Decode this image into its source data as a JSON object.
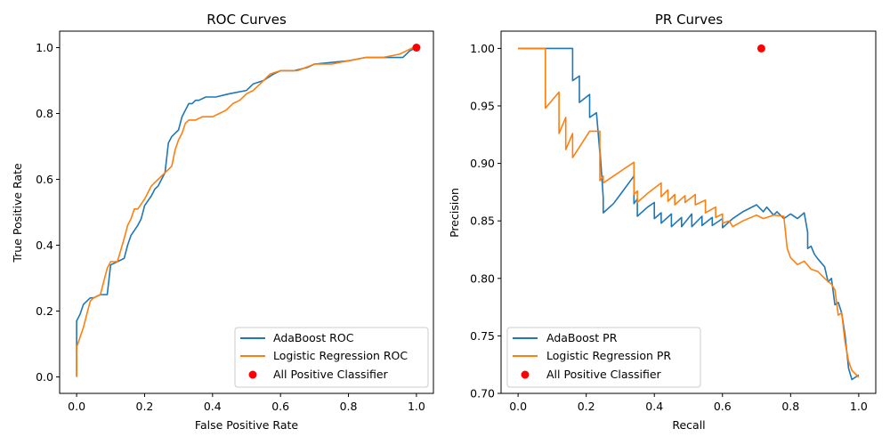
{
  "colors": {
    "adaboost": "#1f77b4",
    "logreg": "#ff7f0e",
    "point": "#ff0000",
    "axis": "#000000"
  },
  "chart_data": [
    {
      "type": "line",
      "title": "ROC Curves",
      "xlabel": "False Positive Rate",
      "ylabel": "True Positive Rate",
      "xlim": [
        -0.05,
        1.05
      ],
      "ylim": [
        -0.05,
        1.05
      ],
      "xticks": [
        0.0,
        0.2,
        0.4,
        0.6,
        0.8,
        1.0
      ],
      "yticks": [
        0.0,
        0.2,
        0.4,
        0.6,
        0.8,
        1.0
      ],
      "xtick_labels": [
        "0.0",
        "0.2",
        "0.4",
        "0.6",
        "0.8",
        "1.0"
      ],
      "ytick_labels": [
        "0.0",
        "0.2",
        "0.4",
        "0.6",
        "0.8",
        "1.0"
      ],
      "legend_position": "bottom-right",
      "series": [
        {
          "name": "AdaBoost ROC",
          "color": "#1f77b4",
          "x": [
            0.0,
            0.0,
            0.01,
            0.02,
            0.03,
            0.04,
            0.05,
            0.07,
            0.09,
            0.1,
            0.12,
            0.14,
            0.15,
            0.16,
            0.18,
            0.19,
            0.2,
            0.22,
            0.23,
            0.24,
            0.25,
            0.26,
            0.27,
            0.28,
            0.29,
            0.3,
            0.31,
            0.33,
            0.34,
            0.35,
            0.36,
            0.38,
            0.41,
            0.45,
            0.5,
            0.52,
            0.55,
            0.58,
            0.6,
            0.64,
            0.68,
            0.7,
            0.8,
            0.85,
            0.9,
            0.96,
            0.97,
            0.98,
            1.0
          ],
          "y": [
            0.0,
            0.17,
            0.19,
            0.22,
            0.23,
            0.24,
            0.24,
            0.25,
            0.25,
            0.34,
            0.35,
            0.36,
            0.4,
            0.43,
            0.46,
            0.48,
            0.52,
            0.55,
            0.57,
            0.58,
            0.6,
            0.62,
            0.71,
            0.73,
            0.74,
            0.75,
            0.79,
            0.83,
            0.83,
            0.84,
            0.84,
            0.85,
            0.85,
            0.86,
            0.87,
            0.89,
            0.9,
            0.92,
            0.93,
            0.93,
            0.94,
            0.95,
            0.96,
            0.97,
            0.97,
            0.97,
            0.98,
            0.99,
            1.0
          ]
        },
        {
          "name": "Logistic Regression ROC",
          "color": "#ff7f0e",
          "x": [
            0.0,
            0.0,
            0.01,
            0.02,
            0.03,
            0.04,
            0.05,
            0.07,
            0.08,
            0.09,
            0.1,
            0.12,
            0.14,
            0.15,
            0.16,
            0.17,
            0.18,
            0.2,
            0.21,
            0.22,
            0.23,
            0.24,
            0.25,
            0.26,
            0.27,
            0.28,
            0.29,
            0.3,
            0.31,
            0.32,
            0.33,
            0.35,
            0.37,
            0.4,
            0.42,
            0.44,
            0.46,
            0.48,
            0.5,
            0.52,
            0.54,
            0.55,
            0.57,
            0.6,
            0.65,
            0.7,
            0.75,
            0.8,
            0.85,
            0.9,
            0.95,
            0.97,
            0.99,
            1.0
          ],
          "y": [
            0.0,
            0.09,
            0.12,
            0.15,
            0.19,
            0.23,
            0.24,
            0.25,
            0.29,
            0.33,
            0.35,
            0.35,
            0.42,
            0.46,
            0.48,
            0.51,
            0.51,
            0.54,
            0.56,
            0.58,
            0.59,
            0.6,
            0.61,
            0.62,
            0.63,
            0.64,
            0.69,
            0.72,
            0.74,
            0.77,
            0.78,
            0.78,
            0.79,
            0.79,
            0.8,
            0.81,
            0.83,
            0.84,
            0.86,
            0.87,
            0.89,
            0.9,
            0.92,
            0.93,
            0.93,
            0.95,
            0.95,
            0.96,
            0.97,
            0.97,
            0.98,
            0.99,
            1.0,
            1.0
          ]
        }
      ],
      "points": [
        {
          "name": "All Positive Classifier",
          "x": 1.0,
          "y": 1.0,
          "color": "#ff0000"
        }
      ]
    },
    {
      "type": "line",
      "title": "PR Curves",
      "xlabel": "Recall",
      "ylabel": "Precision",
      "xlim": [
        -0.05,
        1.05
      ],
      "ylim": [
        0.7,
        1.015
      ],
      "xticks": [
        0.0,
        0.2,
        0.4,
        0.6,
        0.8,
        1.0
      ],
      "yticks": [
        0.7,
        0.75,
        0.8,
        0.85,
        0.9,
        0.95,
        1.0
      ],
      "xtick_labels": [
        "0.0",
        "0.2",
        "0.4",
        "0.6",
        "0.8",
        "1.0"
      ],
      "ytick_labels": [
        "0.70",
        "0.75",
        "0.80",
        "0.85",
        "0.90",
        "0.95",
        "1.00"
      ],
      "legend_position": "bottom-left",
      "series": [
        {
          "name": "AdaBoost PR",
          "color": "#1f77b4",
          "x": [
            0.0,
            0.16,
            0.16,
            0.18,
            0.18,
            0.21,
            0.21,
            0.23,
            0.24,
            0.24,
            0.25,
            0.25,
            0.28,
            0.3,
            0.34,
            0.34,
            0.35,
            0.35,
            0.38,
            0.4,
            0.4,
            0.42,
            0.42,
            0.45,
            0.45,
            0.48,
            0.48,
            0.51,
            0.51,
            0.54,
            0.54,
            0.57,
            0.57,
            0.6,
            0.6,
            0.63,
            0.66,
            0.7,
            0.72,
            0.73,
            0.75,
            0.76,
            0.78,
            0.8,
            0.82,
            0.84,
            0.85,
            0.85,
            0.86,
            0.87,
            0.88,
            0.9,
            0.91,
            0.92,
            0.93,
            0.94,
            0.95,
            0.96,
            0.97,
            0.98,
            1.0
          ],
          "y": [
            1.0,
            1.0,
            0.972,
            0.976,
            0.953,
            0.96,
            0.94,
            0.944,
            0.909,
            0.913,
            0.87,
            0.857,
            0.865,
            0.873,
            0.889,
            0.865,
            0.869,
            0.854,
            0.862,
            0.866,
            0.852,
            0.857,
            0.848,
            0.856,
            0.845,
            0.853,
            0.845,
            0.856,
            0.845,
            0.854,
            0.846,
            0.853,
            0.846,
            0.852,
            0.844,
            0.852,
            0.858,
            0.864,
            0.858,
            0.862,
            0.855,
            0.858,
            0.852,
            0.856,
            0.852,
            0.857,
            0.84,
            0.826,
            0.828,
            0.821,
            0.817,
            0.81,
            0.797,
            0.8,
            0.777,
            0.779,
            0.77,
            0.75,
            0.722,
            0.712,
            0.716
          ]
        },
        {
          "name": "Logistic Regression PR",
          "color": "#ff7f0e",
          "x": [
            0.0,
            0.08,
            0.08,
            0.12,
            0.12,
            0.14,
            0.14,
            0.16,
            0.16,
            0.21,
            0.24,
            0.24,
            0.25,
            0.25,
            0.28,
            0.31,
            0.34,
            0.34,
            0.35,
            0.35,
            0.38,
            0.42,
            0.42,
            0.44,
            0.44,
            0.46,
            0.46,
            0.49,
            0.49,
            0.52,
            0.52,
            0.55,
            0.55,
            0.58,
            0.58,
            0.6,
            0.6,
            0.62,
            0.63,
            0.66,
            0.7,
            0.72,
            0.75,
            0.78,
            0.79,
            0.8,
            0.82,
            0.84,
            0.86,
            0.88,
            0.9,
            0.92,
            0.93,
            0.94,
            0.95,
            0.96,
            0.97,
            0.98,
            1.0
          ],
          "y": [
            1.0,
            1.0,
            0.948,
            0.962,
            0.926,
            0.94,
            0.912,
            0.926,
            0.905,
            0.928,
            0.928,
            0.885,
            0.889,
            0.883,
            0.889,
            0.895,
            0.901,
            0.873,
            0.876,
            0.866,
            0.874,
            0.883,
            0.871,
            0.877,
            0.867,
            0.873,
            0.864,
            0.872,
            0.866,
            0.873,
            0.864,
            0.868,
            0.857,
            0.862,
            0.853,
            0.856,
            0.848,
            0.85,
            0.845,
            0.85,
            0.855,
            0.852,
            0.855,
            0.854,
            0.826,
            0.818,
            0.812,
            0.815,
            0.808,
            0.806,
            0.8,
            0.795,
            0.79,
            0.768,
            0.77,
            0.744,
            0.728,
            0.72,
            0.714
          ]
        }
      ],
      "points": [
        {
          "name": "All Positive Classifier",
          "x": 0.714,
          "y": 1.0,
          "color": "#ff0000"
        }
      ]
    }
  ]
}
